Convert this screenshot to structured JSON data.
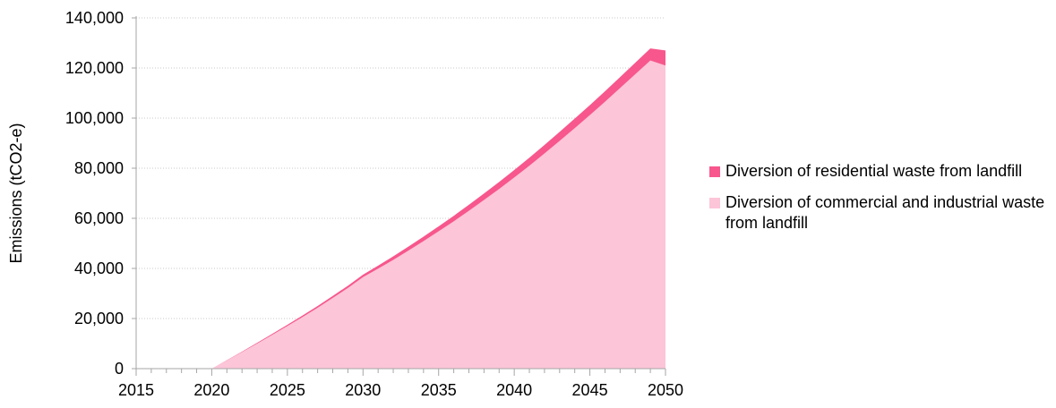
{
  "chart_data": {
    "type": "area",
    "stacked": true,
    "ylabel": "Emissions (tCO2-e)",
    "xlabel": "",
    "xlim": [
      2015,
      2050
    ],
    "ylim": [
      0,
      140000
    ],
    "x_ticks": [
      2015,
      2020,
      2025,
      2030,
      2035,
      2040,
      2045,
      2050
    ],
    "y_ticks": [
      0,
      20000,
      40000,
      60000,
      80000,
      100000,
      120000,
      140000
    ],
    "y_tick_labels": [
      "0",
      "20,000",
      "40,000",
      "60,000",
      "80,000",
      "100,000",
      "120,000",
      "140,000"
    ],
    "grid": "horizontal dotted",
    "legend_position": "right",
    "x": [
      2015,
      2016,
      2017,
      2018,
      2019,
      2020,
      2021,
      2022,
      2023,
      2024,
      2025,
      2026,
      2027,
      2028,
      2029,
      2030,
      2031,
      2032,
      2033,
      2034,
      2035,
      2036,
      2037,
      2038,
      2039,
      2040,
      2041,
      2042,
      2043,
      2044,
      2045,
      2046,
      2047,
      2048,
      2049,
      2050
    ],
    "series": [
      {
        "name": "Diversion of commercial and industrial waste from landfill",
        "color": "#fcc5d8",
        "values": [
          0,
          0,
          0,
          0,
          0,
          0,
          3300,
          6600,
          10000,
          13500,
          17000,
          20600,
          24300,
          28200,
          32200,
          36500,
          39900,
          43400,
          47100,
          50900,
          54800,
          58800,
          63000,
          67300,
          71700,
          76300,
          81000,
          85900,
          90900,
          96000,
          101200,
          106500,
          112000,
          117500,
          123000,
          121000
        ]
      },
      {
        "name": "Diversion of residential waste from landfill",
        "color": "#f7578c",
        "values": [
          0,
          0,
          0,
          0,
          0,
          0,
          100,
          200,
          300,
          400,
          500,
          600,
          700,
          800,
          900,
          1000,
          1200,
          1400,
          1600,
          1800,
          2000,
          2200,
          2400,
          2600,
          2800,
          3000,
          3200,
          3400,
          3600,
          3800,
          4000,
          4200,
          4400,
          4600,
          4800,
          6000
        ]
      }
    ]
  }
}
